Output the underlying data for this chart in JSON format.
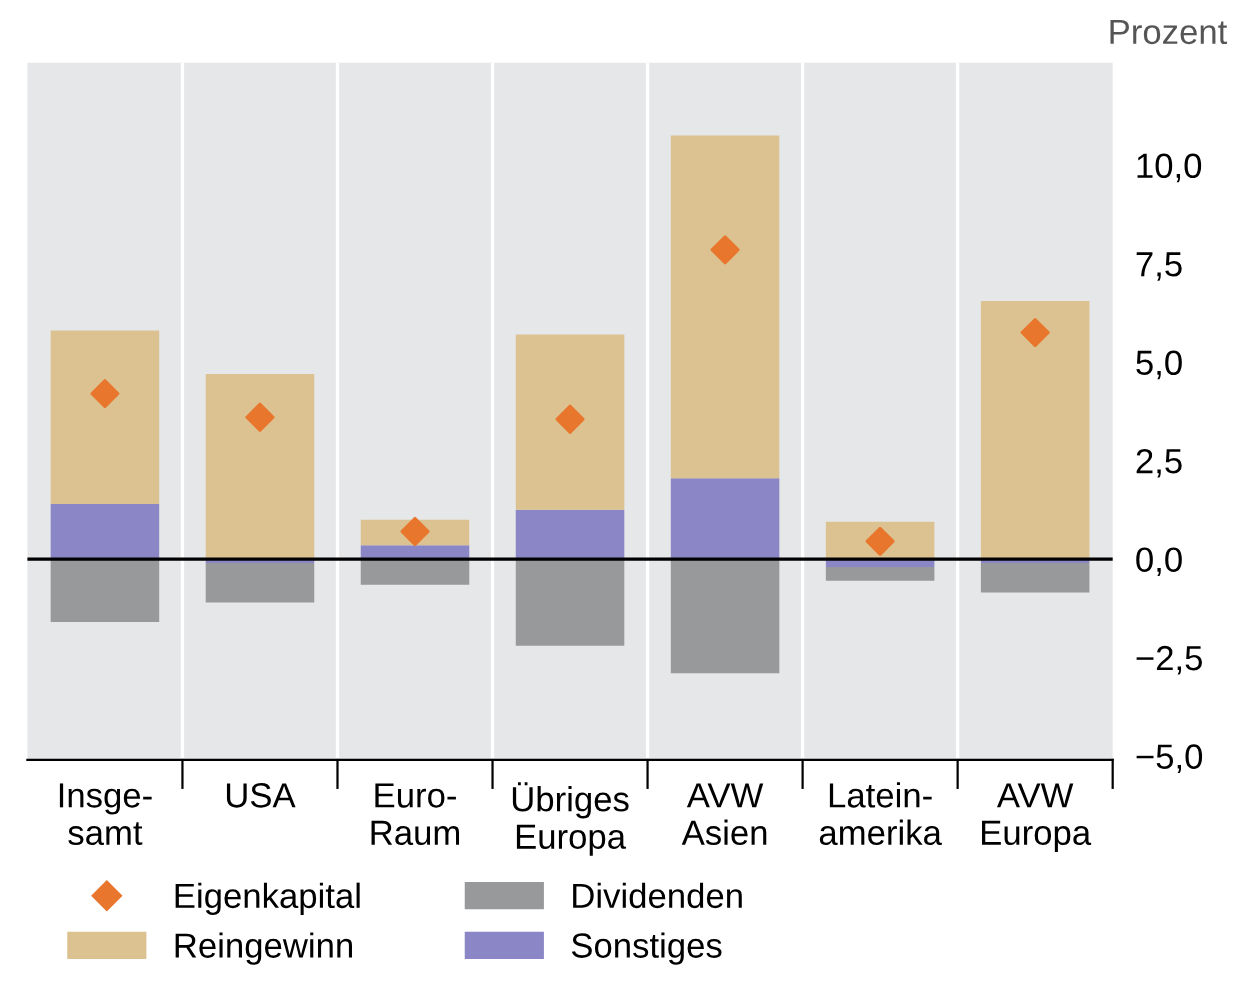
{
  "chart_data": {
    "type": "bar",
    "stacked": true,
    "ylabel": "Prozent",
    "categories": [
      "Insge-\nsamt",
      "USA",
      "Euro-\nRaum",
      "Übriges\nEuropa",
      "AVW\nAsien",
      "Latein-\namerika",
      "AVW\nEuropa"
    ],
    "series": [
      {
        "name": "Sonstiges",
        "color": "#8b87c6",
        "values": [
          1.4,
          -0.1,
          0.35,
          1.25,
          2.05,
          -0.2,
          -0.1
        ]
      },
      {
        "name": "Reingewinn",
        "color": "#dcc291",
        "values": [
          4.4,
          4.7,
          0.65,
          4.45,
          8.7,
          0.95,
          6.55
        ]
      },
      {
        "name": "Dividenden",
        "color": "#98999b",
        "values": [
          -1.6,
          -1.0,
          -0.65,
          -2.2,
          -2.9,
          -0.35,
          -0.75
        ]
      },
      {
        "name": "Eigenkapital",
        "type": "scatter",
        "color": "#e8762d",
        "marker": "diamond",
        "values": [
          4.2,
          3.6,
          0.7,
          3.55,
          7.85,
          0.45,
          5.75
        ]
      }
    ],
    "ylim": [
      -5.1,
      12.6
    ],
    "yticks": [
      {
        "value": -5,
        "label": "−5,0"
      },
      {
        "value": -2.5,
        "label": "−2,5"
      },
      {
        "value": 0,
        "label": "0,0"
      },
      {
        "value": 2.5,
        "label": "2,5"
      },
      {
        "value": 5,
        "label": "5,0"
      },
      {
        "value": 7.5,
        "label": "7,5"
      },
      {
        "value": 10,
        "label": "10,0"
      }
    ],
    "ref_lines": [
      {
        "axis": "y",
        "value": 0,
        "color": "#000000"
      }
    ],
    "grid": "x",
    "legend": "bottom"
  }
}
